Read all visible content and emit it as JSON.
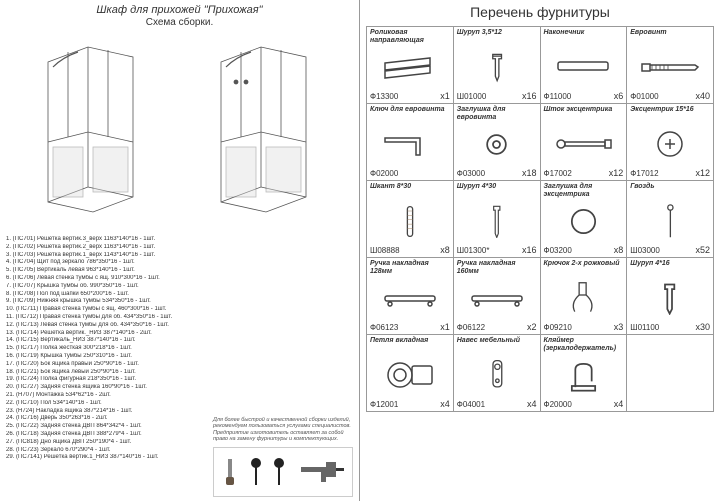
{
  "left": {
    "title": "Шкаф для прихожей \"Прихожая\"",
    "subtitle": "Схема сборки.",
    "parts": [
      "1.  (ПС701) Решетка вертик.3_верх    1163*140*16 - 1шт.",
      "2.  (ПС702) Решетка вертик.2_верх    1163*140*16 - 1шт.",
      "3.  (ПС703) Решетка вертик.1_верх    1143*140*16 - 1шт.",
      "4.  (ПС704) Щит под зеркало           786*350*16 - 1шт.",
      "5.  (ПС705) Вертикаль левая           963*140*16 - 1шт.",
      "6.  (ПС706) Левая стенка тумбы с ящ.  910*300*16 - 1шт.",
      "7.  (ПС707) Крышка тумбы об.          990*350*16 - 1шт.",
      "8.  (ПС708) Пол под шапки             650*200*16 - 1шт.",
      "9.  (ПС709) Нижняя крышка тумбы       534*350*16 - 1шт.",
      "10. (ПС711) Правая стенка тумбы с ящ. 460*300*16 - 1шт.",
      "11. (ПС712) Правая стенка тумбы для об. 434*350*16 - 1шт.",
      "12. (ПС713) Левая стенка тумбы для об. 434*350*16 - 1шт.",
      "13. (ПС714) Решетка вертик._НИЗ       387*140*16 - 2шт.",
      "14. (ПС715) Вертикаль_НИЗ             387*140*16 - 1шт.",
      "15. (ПС717) Полка жесткая             300*218*16 - 1шт.",
      "16. (ПС719) Крышка тумбы              250*310*16 - 1шт.",
      "17. (ПС720) Бок ящика правый          250*90*16 - 1шт.",
      "18. (ПС721) Бок ящика левый           250*90*16 - 1шт.",
      "19. (ПС724) Полка фигурная            218*350*16 - 1шт.",
      "20. (ПС727) Задняя стенка ящика       160*90*16 - 1шт.",
      "21. (Н707)  Монтажка                  534*62*16 - 2шт.",
      "22. (ПС710) Пол                       534*140*16 - 1шт.",
      "23. (Н724)  Накладка ящика            387*214*16 - 1шт.",
      "24. (ПС716) Дверь                     350*263*16 - 2шт.",
      "25. (ПС722) Задняя стенка ДВП         864*342*4 - 1шт.",
      "26. (ПС718) Задняя стенка ДВП         388*279*4 - 1шт.",
      "27. (ПС818) Дно ящика ДВП             250*190*4 - 1шт.",
      "28. (ПС723) Зеркало                   670*290*4 - 1шт.",
      "29. (ПС7141) Решетка вертик.1_НИЗ     387*140*16 - 1шт."
    ],
    "note": "Для более быстрой и качественной сборки изделий, рекомендуем пользоваться услугами специалистов.\nПредприятие изготовитель оставляет за собой право на замену фурнитуры и комплектующих."
  },
  "right": {
    "title": "Перечень фурнитуры",
    "items": [
      {
        "name": "Роликовая направляющая",
        "code": "Ф13300",
        "qty": "x1",
        "icon": "rail"
      },
      {
        "name": "Шуруп 3,5*12",
        "code": "Ш01000",
        "qty": "x16",
        "icon": "screw"
      },
      {
        "name": "Наконечник",
        "code": "Ф11000",
        "qty": "x6",
        "icon": "tip"
      },
      {
        "name": "Евровинт",
        "code": "Ф01000",
        "qty": "x40",
        "icon": "euroscrew"
      },
      {
        "name": "Ключ для евровинта",
        "code": "Ф02000",
        "qty": "",
        "icon": "hexkey"
      },
      {
        "name": "Заглушка для евровинта",
        "code": "Ф03000",
        "qty": "x18",
        "icon": "cap"
      },
      {
        "name": "Шток эксцентрика",
        "code": "Ф17002",
        "qty": "x12",
        "icon": "camstem"
      },
      {
        "name": "Эксцентрик 15*16",
        "code": "Ф17012",
        "qty": "x12",
        "icon": "cam"
      },
      {
        "name": "Шкант 8*30",
        "code": "Ш08888",
        "qty": "x8",
        "icon": "dowel"
      },
      {
        "name": "Шуруп 4*30",
        "code": "Ш01300*",
        "qty": "x16",
        "icon": "screw2"
      },
      {
        "name": "Заглушка для эксцентрика",
        "code": "Ф03200",
        "qty": "x8",
        "icon": "cap2"
      },
      {
        "name": "Гвоздь",
        "code": "Ш03000",
        "qty": "x52",
        "icon": "nail"
      },
      {
        "name": "Ручка накладная 128мм",
        "code": "Ф06123",
        "qty": "x1",
        "icon": "handle"
      },
      {
        "name": "Ручка накладная 160мм",
        "code": "Ф06122",
        "qty": "x2",
        "icon": "handle"
      },
      {
        "name": "Крючок 2-х рожковый",
        "code": "Ф09210",
        "qty": "x3",
        "icon": "hook"
      },
      {
        "name": "Шуруп 4*16",
        "code": "Ш01100",
        "qty": "x30",
        "icon": "screw3"
      },
      {
        "name": "Петля вкладная",
        "code": "Ф12001",
        "qty": "x4",
        "icon": "hinge"
      },
      {
        "name": "Навес мебельный",
        "code": "Ф04001",
        "qty": "x4",
        "icon": "hanger"
      },
      {
        "name": "Кляймер (зеркалодержатель)",
        "code": "Ф20000",
        "qty": "x4",
        "icon": "clip"
      },
      {
        "name": "",
        "code": "",
        "qty": "",
        "icon": ""
      }
    ]
  }
}
